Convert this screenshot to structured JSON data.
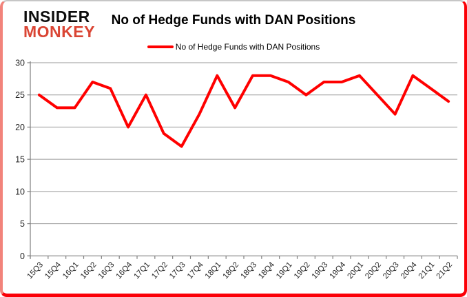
{
  "logo": {
    "line1": "INSIDER",
    "line2": "MONKEY"
  },
  "title": "No of Hedge Funds with DAN Positions",
  "legend": {
    "label": "No of Hedge Funds with DAN Positions",
    "swatch_color": "#ff0000"
  },
  "colors": {
    "line": "#ff0000",
    "grid": "#9a9a9a",
    "axis": "#7f7f7f",
    "tick_text": "#262626",
    "logo_red": "#da4534",
    "border_red": "#fb0007",
    "border_pink": "#f2837b"
  },
  "chart_data": {
    "type": "line",
    "title": "No of Hedge Funds with DAN Positions",
    "xlabel": "",
    "ylabel": "",
    "categories": [
      "15Q3",
      "15Q4",
      "16Q1",
      "16Q2",
      "16Q3",
      "16Q4",
      "17Q1",
      "17Q2",
      "17Q3",
      "17Q4",
      "18Q1",
      "18Q2",
      "18Q3",
      "18Q4",
      "19Q1",
      "19Q2",
      "19Q3",
      "19Q4",
      "20Q1",
      "20Q2",
      "20Q3",
      "20Q4",
      "21Q1",
      "21Q2"
    ],
    "series": [
      {
        "name": "No of Hedge Funds with DAN Positions",
        "color": "#ff0000",
        "values": [
          25,
          23,
          23,
          27,
          26,
          20,
          25,
          19,
          17,
          22,
          28,
          23,
          28,
          28,
          27,
          25,
          27,
          27,
          28,
          25,
          22,
          28,
          26,
          24
        ]
      }
    ],
    "ylim": [
      0,
      30
    ],
    "yticks": [
      0,
      5,
      10,
      15,
      20,
      25,
      30
    ],
    "grid": true,
    "legend_position": "top"
  }
}
